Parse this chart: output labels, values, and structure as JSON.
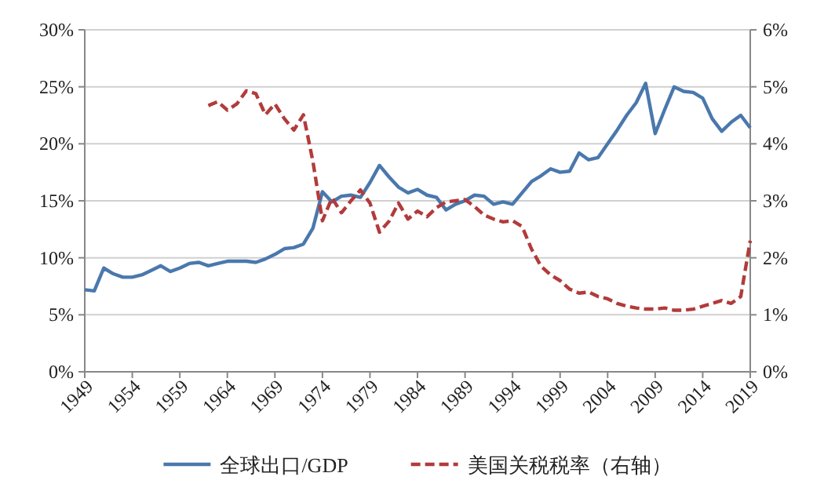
{
  "chart_data": {
    "type": "line",
    "x": [
      1949,
      1950,
      1951,
      1952,
      1953,
      1954,
      1955,
      1956,
      1957,
      1958,
      1959,
      1960,
      1961,
      1962,
      1963,
      1964,
      1965,
      1966,
      1967,
      1968,
      1969,
      1970,
      1971,
      1972,
      1973,
      1974,
      1975,
      1976,
      1977,
      1978,
      1979,
      1980,
      1981,
      1982,
      1983,
      1984,
      1985,
      1986,
      1987,
      1988,
      1989,
      1990,
      1991,
      1992,
      1993,
      1994,
      1995,
      1996,
      1997,
      1998,
      1999,
      2000,
      2001,
      2002,
      2003,
      2004,
      2005,
      2006,
      2007,
      2008,
      2009,
      2010,
      2011,
      2012,
      2013,
      2014,
      2015,
      2016,
      2017,
      2018,
      2019
    ],
    "series": [
      {
        "name": "全球出口/GDP",
        "color": "#4a78ad",
        "line_style": "solid",
        "values": [
          7.2,
          7.1,
          9.1,
          8.6,
          8.3,
          8.3,
          8.5,
          8.9,
          9.3,
          8.8,
          9.1,
          9.5,
          9.6,
          9.3,
          9.5,
          9.7,
          9.7,
          9.7,
          9.6,
          9.9,
          10.3,
          10.8,
          10.9,
          11.2,
          12.6,
          15.8,
          14.9,
          15.4,
          15.5,
          15.3,
          16.6,
          18.1,
          17.1,
          16.2,
          15.7,
          16.0,
          15.5,
          15.3,
          14.2,
          14.7,
          15.0,
          15.5,
          15.4,
          14.7,
          14.9,
          14.7,
          15.7,
          16.7,
          17.2,
          17.8,
          17.5,
          17.6,
          19.2,
          18.6,
          18.8,
          20.0,
          21.2,
          22.5,
          23.6,
          25.3,
          20.9,
          23.0,
          25.0,
          24.6,
          24.5,
          24.0,
          22.2,
          21.1,
          21.9,
          22.5,
          21.4
        ]
      },
      {
        "name": "美国关税税率（右轴）",
        "color": "#b23b3b",
        "line_style": "dashed",
        "axis": "y2",
        "values": [
          null,
          null,
          null,
          null,
          null,
          null,
          null,
          null,
          null,
          null,
          null,
          null,
          null,
          4.67,
          4.74,
          4.59,
          4.7,
          4.93,
          4.88,
          4.51,
          4.7,
          4.44,
          4.24,
          4.51,
          3.69,
          2.65,
          3.05,
          2.79,
          3.0,
          3.19,
          2.96,
          2.45,
          2.64,
          2.96,
          2.68,
          2.82,
          2.72,
          2.88,
          2.98,
          3.0,
          3.02,
          2.9,
          2.75,
          2.68,
          2.63,
          2.65,
          2.55,
          2.15,
          1.85,
          1.7,
          1.6,
          1.45,
          1.38,
          1.4,
          1.32,
          1.28,
          1.2,
          1.15,
          1.12,
          1.1,
          1.1,
          1.12,
          1.08,
          1.08,
          1.1,
          1.15,
          1.2,
          1.25,
          1.2,
          1.32,
          2.3
        ]
      }
    ],
    "xlim": [
      1949,
      2019
    ],
    "xticks": [
      1949,
      1954,
      1959,
      1964,
      1969,
      1974,
      1979,
      1984,
      1989,
      1994,
      1999,
      2004,
      2009,
      2014,
      2019
    ],
    "ylim": [
      0,
      30
    ],
    "yticks": [
      {
        "value": 0,
        "label": "0%"
      },
      {
        "value": 5,
        "label": "5%"
      },
      {
        "value": 10,
        "label": "10%"
      },
      {
        "value": 15,
        "label": "15%"
      },
      {
        "value": 20,
        "label": "20%"
      },
      {
        "value": 25,
        "label": "25%"
      },
      {
        "value": 30,
        "label": "30%"
      }
    ],
    "y2lim": [
      0,
      6
    ],
    "y2ticks": [
      {
        "value": 0,
        "label": "0%"
      },
      {
        "value": 1,
        "label": "1%"
      },
      {
        "value": 2,
        "label": "2%"
      },
      {
        "value": 3,
        "label": "3%"
      },
      {
        "value": 4,
        "label": "4%"
      },
      {
        "value": 5,
        "label": "5%"
      },
      {
        "value": 6,
        "label": "6%"
      }
    ],
    "grid": "y",
    "legend": "bottom"
  }
}
